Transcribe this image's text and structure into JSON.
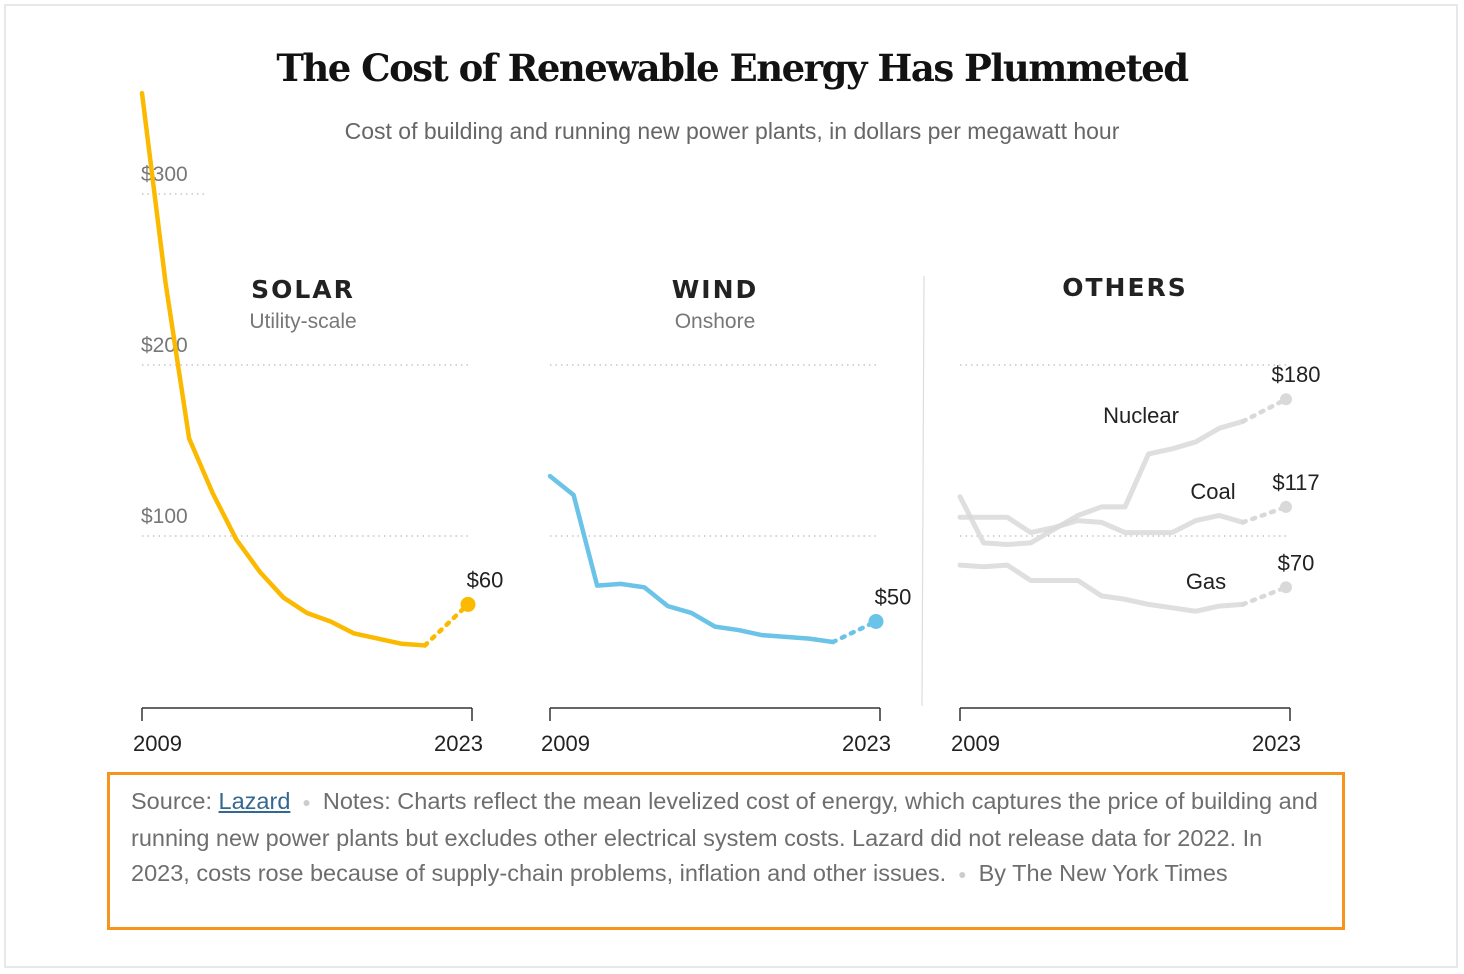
{
  "title": "The Cost of Renewable Energy Has Plummeted",
  "subtitle": "Cost of building and running new power plants, in dollars per megawatt hour",
  "footer": {
    "source_label": "Source:",
    "source_link": "Lazard",
    "notes": "Notes: Charts reflect the mean levelized cost of energy, which captures the price of building and running new power plants but excludes other electrical system costs. Lazard did not release data for 2022. In 2023, costs rose because of supply-chain problems, inflation and other issues.",
    "byline": "By The New York Times"
  },
  "colors": {
    "solar": "#fbb900",
    "wind": "#6cc3e8",
    "others": "#d9d9d9",
    "highlight_border": "#f7941d",
    "link": "#326891"
  },
  "chart_data": [
    {
      "type": "line",
      "title": "SOLAR",
      "subtitle": "Utility-scale",
      "x_ticks": [
        "2009",
        "2023"
      ],
      "y_ticks": [
        "$100",
        "$200",
        "$300"
      ],
      "ylim": [
        0,
        360
      ],
      "grid": true,
      "series": [
        {
          "x": [
            2009,
            2010,
            2011,
            2012,
            2013,
            2014,
            2015,
            2016,
            2017,
            2018,
            2019,
            2020,
            2021,
            2023
          ],
          "values": [
            359,
            248,
            157,
            125,
            98,
            79,
            64,
            55,
            50,
            43,
            40,
            37,
            36,
            60
          ],
          "end_label": "$60",
          "color": "#fbb900"
        }
      ]
    },
    {
      "type": "line",
      "title": "WIND",
      "subtitle": "Onshore",
      "x_ticks": [
        "2009",
        "2023"
      ],
      "ylim": [
        0,
        360
      ],
      "grid": true,
      "series": [
        {
          "x": [
            2009,
            2010,
            2011,
            2012,
            2013,
            2014,
            2015,
            2016,
            2017,
            2018,
            2019,
            2020,
            2021,
            2023
          ],
          "values": [
            135,
            124,
            71,
            72,
            70,
            59,
            55,
            47,
            45,
            42,
            41,
            40,
            38,
            50
          ],
          "end_label": "$50",
          "color": "#6cc3e8"
        }
      ]
    },
    {
      "type": "line",
      "title": "OTHERS",
      "x_ticks": [
        "2009",
        "2023"
      ],
      "ylim": [
        0,
        360
      ],
      "grid": true,
      "series": [
        {
          "name": "Nuclear",
          "x": [
            2009,
            2010,
            2011,
            2012,
            2013,
            2014,
            2015,
            2016,
            2017,
            2018,
            2019,
            2020,
            2021,
            2023
          ],
          "values": [
            123,
            96,
            95,
            96,
            104,
            112,
            117,
            117,
            148,
            151,
            155,
            163,
            167,
            180
          ],
          "end_label": "$180",
          "color": "#d9d9d9"
        },
        {
          "name": "Coal",
          "x": [
            2009,
            2010,
            2011,
            2012,
            2013,
            2014,
            2015,
            2016,
            2017,
            2018,
            2019,
            2020,
            2021,
            2023
          ],
          "values": [
            111,
            111,
            111,
            102,
            105,
            109,
            108,
            102,
            102,
            102,
            109,
            112,
            108,
            117
          ],
          "end_label": "$117",
          "color": "#d9d9d9"
        },
        {
          "name": "Gas",
          "x": [
            2009,
            2010,
            2011,
            2012,
            2013,
            2014,
            2015,
            2016,
            2017,
            2018,
            2019,
            2020,
            2021,
            2023
          ],
          "values": [
            83,
            82,
            83,
            74,
            74,
            74,
            65,
            63,
            60,
            58,
            56,
            59,
            60,
            70
          ],
          "end_label": "$70",
          "color": "#d9d9d9"
        }
      ]
    }
  ]
}
